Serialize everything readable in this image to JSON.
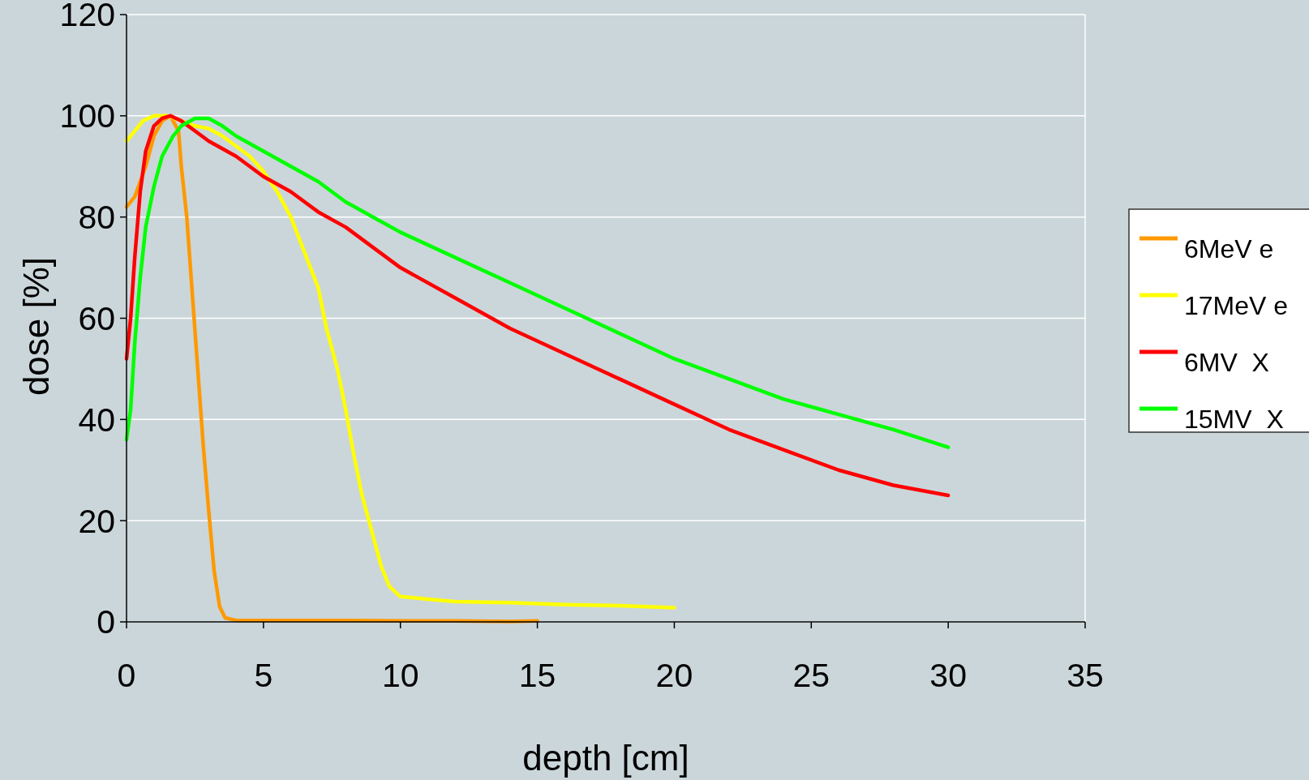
{
  "chart_data": {
    "type": "line",
    "xlabel": "depth [cm]",
    "ylabel": "dose [%]",
    "xlim": [
      0,
      35
    ],
    "xticks": [
      0,
      5,
      10,
      15,
      20,
      25,
      30,
      35
    ],
    "ylim": [
      0,
      120
    ],
    "yticks": [
      0,
      20,
      40,
      60,
      80,
      100,
      120
    ],
    "grid": "y",
    "legend": "right",
    "marker": "none",
    "line_style": "solid",
    "series": [
      {
        "name": "6MeV e",
        "color": "#ff9900",
        "x": [
          0,
          0.3,
          0.7,
          1,
          1.3,
          1.6,
          1.9,
          2.0,
          2.2,
          2.4,
          2.6,
          2.8,
          3.0,
          3.2,
          3.4,
          3.6,
          4,
          6,
          8,
          10,
          12,
          14,
          15
        ],
        "values": [
          82,
          84,
          90,
          96,
          99,
          100,
          97,
          90,
          80,
          65,
          50,
          35,
          22,
          10,
          3,
          0.8,
          0.3,
          0.3,
          0.3,
          0.2,
          0.2,
          0.1,
          0.2
        ]
      },
      {
        "name": "17MeV e",
        "color": "#ffff00",
        "x": [
          0,
          0.3,
          0.6,
          1,
          1.5,
          2,
          2.5,
          3,
          3.5,
          4,
          4.5,
          5,
          5.5,
          6,
          6.5,
          7,
          7.3,
          7.7,
          8,
          8.3,
          8.6,
          9,
          9.3,
          9.6,
          10,
          11,
          12,
          14,
          16,
          18,
          20
        ],
        "values": [
          95,
          97,
          99,
          100,
          100,
          99,
          98,
          97.5,
          96,
          94,
          92,
          89,
          85,
          80,
          73,
          66,
          58,
          50,
          42,
          33,
          25,
          17,
          11,
          7,
          5,
          4.5,
          4,
          3.8,
          3.4,
          3.2,
          2.8
        ]
      },
      {
        "name": "6MV  X",
        "color": "#ff0000",
        "x": [
          0,
          0.15,
          0.3,
          0.5,
          0.7,
          1,
          1.3,
          1.6,
          2,
          2.5,
          3,
          4,
          5,
          6,
          7,
          8,
          9,
          10,
          12,
          14,
          16,
          18,
          20,
          22,
          24,
          26,
          28,
          30
        ],
        "values": [
          52,
          60,
          72,
          85,
          93,
          98,
          99.5,
          100,
          99,
          97,
          95,
          92,
          88,
          85,
          81,
          78,
          74,
          70,
          64,
          58,
          53,
          48,
          43,
          38,
          34,
          30,
          27,
          25
        ]
      },
      {
        "name": "15MV  X",
        "color": "#00ff00",
        "x": [
          0,
          0.15,
          0.3,
          0.5,
          0.7,
          1,
          1.3,
          1.7,
          2,
          2.5,
          3,
          3.5,
          4,
          5,
          6,
          7,
          8,
          9,
          10,
          12,
          14,
          16,
          18,
          20,
          22,
          24,
          26,
          28,
          30
        ],
        "values": [
          36,
          42,
          55,
          68,
          78,
          86,
          92,
          96,
          98,
          99.5,
          99.5,
          98,
          96,
          93,
          90,
          87,
          83,
          80,
          77,
          72,
          67,
          62,
          57,
          52,
          48,
          44,
          41,
          38,
          34.5
        ]
      }
    ]
  }
}
